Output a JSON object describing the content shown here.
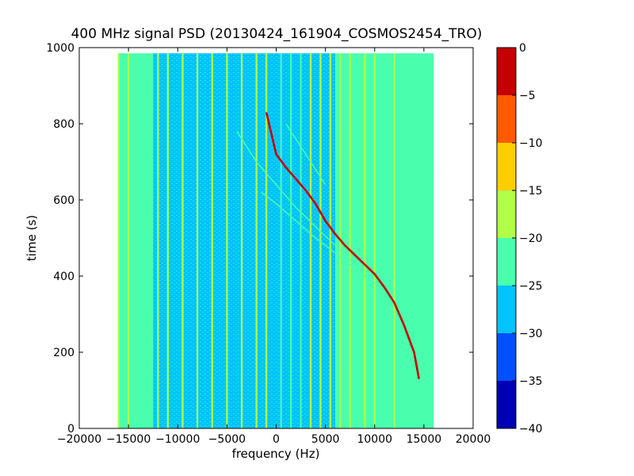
{
  "chart_data": {
    "type": "heatmap",
    "title": "400 MHz signal PSD (20130424_161904_COSMOS2454_TRO)",
    "xlabel": "frequency (Hz)",
    "ylabel": "time (s)",
    "xlim": [
      -20000,
      20000
    ],
    "ylim": [
      0,
      1000
    ],
    "xticks": [
      -20000,
      -15000,
      -10000,
      -5000,
      0,
      5000,
      10000,
      15000,
      20000
    ],
    "yticks": [
      0,
      200,
      400,
      600,
      800,
      1000
    ],
    "data_extent": {
      "frequency": [
        -16000,
        16000
      ],
      "time": [
        0,
        985
      ]
    },
    "background_level_by_band": [
      {
        "frequency": [
          -16000,
          -12500
        ],
        "level": -22.5
      },
      {
        "frequency": [
          -12500,
          6000
        ],
        "level": -27.5
      },
      {
        "frequency": [
          6000,
          13000
        ],
        "level": -25
      },
      {
        "frequency": [
          13000,
          16000
        ],
        "level": -22.5
      }
    ],
    "vertical_lines": [
      {
        "frequency": -16000,
        "level": -17.5
      },
      {
        "frequency": -15000,
        "level": -17.5
      },
      {
        "frequency": -12000,
        "level": -20
      },
      {
        "frequency": -11000,
        "level": -17.5
      },
      {
        "frequency": -9500,
        "level": -17.5
      },
      {
        "frequency": -8000,
        "level": -17.5
      },
      {
        "frequency": -6500,
        "level": -20
      },
      {
        "frequency": -5000,
        "level": -20
      },
      {
        "frequency": -3500,
        "level": -20
      },
      {
        "frequency": -2000,
        "level": -20
      },
      {
        "frequency": -1000,
        "level": -20
      },
      {
        "frequency": 500,
        "level": -22.5
      },
      {
        "frequency": 1500,
        "level": -22.5
      },
      {
        "frequency": 2500,
        "level": -22.5
      },
      {
        "frequency": 3500,
        "level": -20
      },
      {
        "frequency": 4500,
        "level": -20
      },
      {
        "frequency": 5500,
        "level": -20
      },
      {
        "frequency": 6500,
        "level": -17.5
      },
      {
        "frequency": 7500,
        "level": -20
      },
      {
        "frequency": 9000,
        "level": -20
      },
      {
        "frequency": 10000,
        "level": -20
      },
      {
        "frequency": 12000,
        "level": -20
      }
    ],
    "series": [
      {
        "name": "",
        "level": -2.5,
        "x": [
          -1000,
          -500,
          0,
          1000,
          2000,
          3000,
          4000,
          5000,
          6000,
          7000,
          8000,
          9000,
          10000,
          11000,
          12000,
          13000,
          14000,
          14500
        ],
        "y": [
          830,
          775,
          720,
          685,
          655,
          625,
          590,
          545,
          510,
          480,
          455,
          430,
          405,
          370,
          330,
          270,
          200,
          130
        ]
      },
      {
        "name": "",
        "level": -22.5,
        "x": [
          -4000,
          -2000,
          0,
          2000,
          4000,
          6000,
          8000
        ],
        "y": [
          780,
          700,
          640,
          580,
          530,
          480,
          430
        ]
      },
      {
        "name": "",
        "level": -22.5,
        "x": [
          -1500,
          0,
          2000,
          4000,
          6000,
          8000,
          10000
        ],
        "y": [
          620,
          590,
          545,
          500,
          460,
          420,
          380
        ]
      },
      {
        "name": "",
        "level": -22.5,
        "x": [
          1000,
          2000,
          3000,
          4000,
          5000
        ],
        "y": [
          800,
          760,
          720,
          680,
          640
        ]
      }
    ],
    "colorbar": {
      "ticks": [
        0,
        -5,
        -10,
        -15,
        -20,
        -25,
        -30,
        -35,
        -40
      ],
      "range": [
        -40,
        0
      ],
      "bands": [
        {
          "from": -5,
          "to": 0,
          "color": "#c40000"
        },
        {
          "from": -10,
          "to": -5,
          "color": "#ff5a00"
        },
        {
          "from": -15,
          "to": -10,
          "color": "#ffce00"
        },
        {
          "from": -20,
          "to": -15,
          "color": "#b0ff48"
        },
        {
          "from": -25,
          "to": -20,
          "color": "#49ffad"
        },
        {
          "from": -30,
          "to": -25,
          "color": "#00c3ff"
        },
        {
          "from": -35,
          "to": -30,
          "color": "#0050ff"
        },
        {
          "from": -40,
          "to": -35,
          "color": "#0000b5"
        }
      ]
    },
    "grid": false,
    "legend": "none"
  }
}
